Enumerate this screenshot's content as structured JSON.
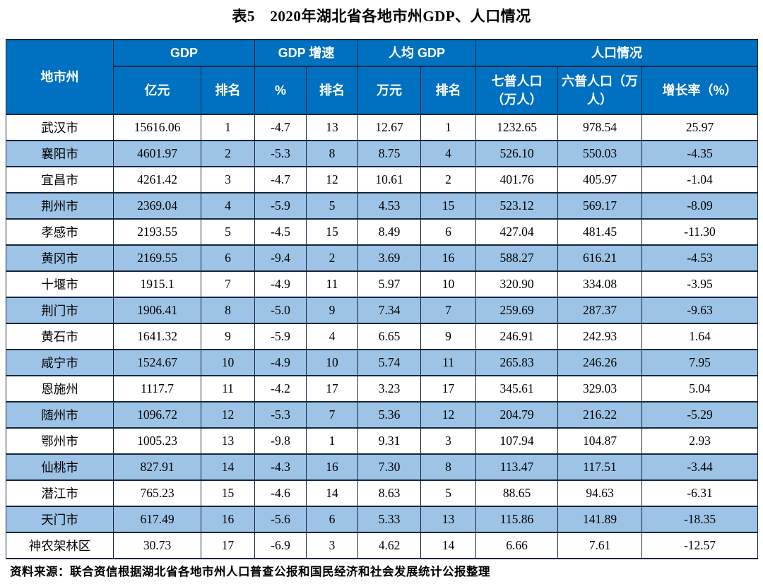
{
  "title": "表5　2020年湖北省各地市州GDP、人口情况",
  "colors": {
    "header_bg": "#0070C0",
    "alt_row_bg": "#9DC3E6",
    "border": "#15253b",
    "header_text": "#FFFFFF"
  },
  "table": {
    "group_headers": [
      "地市州",
      "GDP",
      "GDP 增速",
      "人均 GDP",
      "人口情况"
    ],
    "sub_headers": [
      "亿元",
      "排名",
      "%",
      "排名",
      "万元",
      "排名",
      "七普人口（万人）",
      "六普人口（万人）",
      "增长率（%）"
    ],
    "rows": [
      [
        "武汉市",
        "15616.06",
        "1",
        "-4.7",
        "13",
        "12.67",
        "1",
        "1232.65",
        "978.54",
        "25.97"
      ],
      [
        "襄阳市",
        "4601.97",
        "2",
        "-5.3",
        "8",
        "8.75",
        "4",
        "526.10",
        "550.03",
        "-4.35"
      ],
      [
        "宜昌市",
        "4261.42",
        "3",
        "-4.7",
        "12",
        "10.61",
        "2",
        "401.76",
        "405.97",
        "-1.04"
      ],
      [
        "荆州市",
        "2369.04",
        "4",
        "-5.9",
        "5",
        "4.53",
        "15",
        "523.12",
        "569.17",
        "-8.09"
      ],
      [
        "孝感市",
        "2193.55",
        "5",
        "-4.5",
        "15",
        "8.49",
        "6",
        "427.04",
        "481.45",
        "-11.30"
      ],
      [
        "黄冈市",
        "2169.55",
        "6",
        "-9.4",
        "2",
        "3.69",
        "16",
        "588.27",
        "616.21",
        "-4.53"
      ],
      [
        "十堰市",
        "1915.1",
        "7",
        "-4.9",
        "11",
        "5.97",
        "10",
        "320.90",
        "334.08",
        "-3.95"
      ],
      [
        "荆门市",
        "1906.41",
        "8",
        "-5.0",
        "9",
        "7.34",
        "7",
        "259.69",
        "287.37",
        "-9.63"
      ],
      [
        "黄石市",
        "1641.32",
        "9",
        "-5.9",
        "4",
        "6.65",
        "9",
        "246.91",
        "242.93",
        "1.64"
      ],
      [
        "咸宁市",
        "1524.67",
        "10",
        "-4.9",
        "10",
        "5.74",
        "11",
        "265.83",
        "246.26",
        "7.95"
      ],
      [
        "恩施州",
        "1117.7",
        "11",
        "-4.2",
        "17",
        "3.23",
        "17",
        "345.61",
        "329.03",
        "5.04"
      ],
      [
        "随州市",
        "1096.72",
        "12",
        "-5.3",
        "7",
        "5.36",
        "12",
        "204.79",
        "216.22",
        "-5.29"
      ],
      [
        "鄂州市",
        "1005.23",
        "13",
        "-9.8",
        "1",
        "9.31",
        "3",
        "107.94",
        "104.87",
        "2.93"
      ],
      [
        "仙桃市",
        "827.91",
        "14",
        "-4.3",
        "16",
        "7.30",
        "8",
        "113.47",
        "117.51",
        "-3.44"
      ],
      [
        "潜江市",
        "765.23",
        "15",
        "-4.6",
        "14",
        "8.63",
        "5",
        "88.65",
        "94.63",
        "-6.31"
      ],
      [
        "天门市",
        "617.49",
        "16",
        "-5.6",
        "6",
        "5.33",
        "13",
        "115.86",
        "141.89",
        "-18.35"
      ],
      [
        "神农架林区",
        "30.73",
        "17",
        "-6.9",
        "3",
        "4.62",
        "14",
        "6.66",
        "7.61",
        "-12.57"
      ]
    ]
  },
  "source_note": "资料来源：联合资信根据湖北省各地市州人口普查公报和国民经济和社会发展统计公报整理"
}
